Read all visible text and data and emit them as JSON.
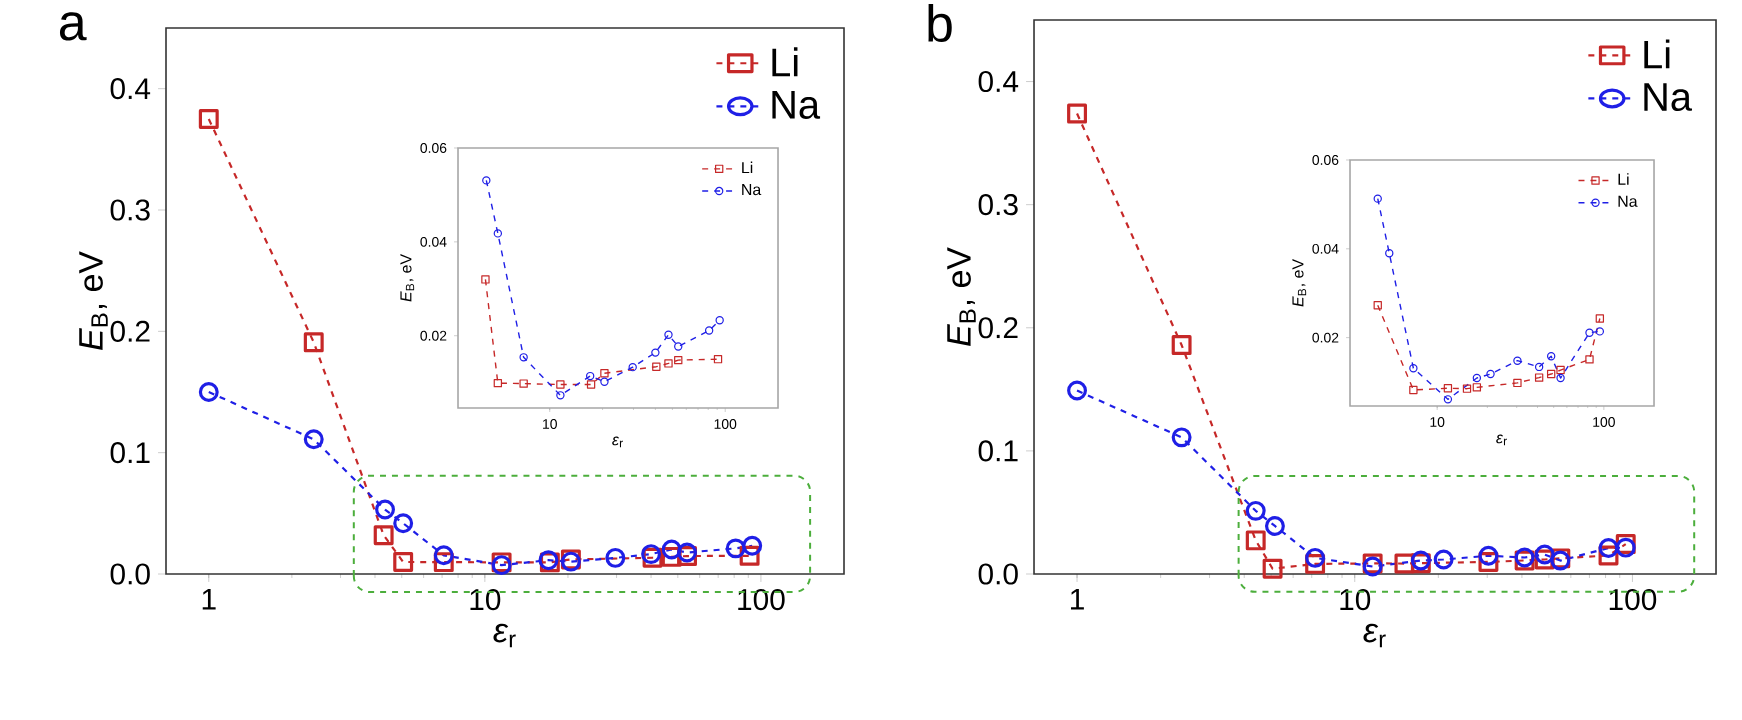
{
  "chart_data": [
    {
      "type": "line",
      "title": "a",
      "xlabel": "*ε*$_{r}$",
      "ylabel": "*E*$_{B}$, eV",
      "log": "x",
      "legend": "top right",
      "line_style": "dashed",
      "xlim": [
        0.7,
        200
      ],
      "ylim": [
        0,
        0.45
      ],
      "xticks": [
        1,
        10,
        100
      ],
      "yticks": [
        {
          "value": 0,
          "label": "0.0"
        },
        {
          "value": 0.1,
          "label": "0.1"
        },
        {
          "value": 0.2,
          "label": "0.2"
        },
        {
          "value": 0.3,
          "label": "0.3"
        },
        {
          "value": 0.4,
          "label": "0.4"
        }
      ],
      "series": [
        {
          "name": "Li",
          "color": "#c62828",
          "marker": "square",
          "x": [
            1,
            2.4,
            4.3,
            5.06,
            7.1,
            11.5,
            17.2,
            20.5,
            40.5,
            47.5,
            54,
            91
          ],
          "values": [
            0.375,
            0.191,
            0.032,
            0.0099,
            0.0098,
            0.0096,
            0.0096,
            0.012,
            0.0134,
            0.0141,
            0.0148,
            0.015
          ]
        },
        {
          "name": "Na",
          "color": "#1f1fe6",
          "marker": "circle",
          "x": [
            1,
            2.4,
            4.35,
            5.06,
            7.1,
            11.5,
            17,
            20.5,
            29.7,
            40,
            47.5,
            54,
            81,
            93
          ],
          "values": [
            0.15,
            0.111,
            0.0531,
            0.0418,
            0.0154,
            0.0073,
            0.0114,
            0.0102,
            0.0133,
            0.0164,
            0.0202,
            0.0177,
            0.0211,
            0.0233
          ]
        }
      ]
    },
    {
      "type": "line",
      "xlabel": "*ε*$_{r}$",
      "ylabel": "*E*$_{B}$, eV",
      "log": "x",
      "legend": "top right",
      "line_style": "dashed",
      "xlim": [
        3,
        200
      ],
      "ylim": [
        0.0046,
        0.06
      ],
      "xticks": [
        10,
        100
      ],
      "yticks": [
        0.02,
        0.04,
        0.06
      ],
      "series": [
        {
          "name": "Li",
          "color": "#c62828",
          "marker": "square",
          "x": [
            4.3,
            5.06,
            7.1,
            11.5,
            17.2,
            20.5,
            40.5,
            47.5,
            54,
            91
          ],
          "values": [
            0.032,
            0.0099,
            0.0098,
            0.0096,
            0.0096,
            0.012,
            0.0134,
            0.0141,
            0.0148,
            0.015
          ]
        },
        {
          "name": "Na",
          "color": "#1f1fe6",
          "marker": "circle",
          "x": [
            4.35,
            5.06,
            7.1,
            11.5,
            17,
            20.5,
            29.7,
            40,
            47.5,
            54,
            81,
            93
          ],
          "values": [
            0.0531,
            0.0418,
            0.0154,
            0.0073,
            0.0114,
            0.0102,
            0.0133,
            0.0164,
            0.0202,
            0.0177,
            0.0211,
            0.0233
          ]
        }
      ]
    },
    {
      "type": "line",
      "title": "b",
      "xlabel": "*ε*$_{r}$",
      "ylabel": "*E*$_{B}$, eV",
      "log": "x",
      "legend": "top right",
      "line_style": "dashed",
      "xlim": [
        0.7,
        200
      ],
      "ylim": [
        0,
        0.45
      ],
      "xticks": [
        1,
        10,
        100
      ],
      "yticks": [
        {
          "value": 0,
          "label": "0.0"
        },
        {
          "value": 0.1,
          "label": "0.1"
        },
        {
          "value": 0.2,
          "label": "0.2"
        },
        {
          "value": 0.3,
          "label": "0.3"
        },
        {
          "value": 0.4,
          "label": "0.4"
        }
      ],
      "series": [
        {
          "name": "Li",
          "color": "#c62828",
          "marker": "square",
          "x": [
            1,
            2.38,
            4.4,
            5.06,
            7.2,
            11.6,
            15.1,
            17.3,
            30.3,
            40.9,
            48.3,
            55,
            82,
            94.6
          ],
          "values": [
            0.374,
            0.186,
            0.0273,
            0.0043,
            0.0082,
            0.0086,
            0.0085,
            0.0088,
            0.0098,
            0.011,
            0.0118,
            0.0127,
            0.0151,
            0.0243
          ]
        },
        {
          "name": "Na",
          "color": "#1f1fe6",
          "marker": "circle",
          "x": [
            1,
            2.38,
            4.4,
            5.16,
            7.2,
            11.6,
            17.3,
            20.9,
            30.3,
            40.9,
            48.3,
            55,
            82,
            94.6
          ],
          "values": [
            0.149,
            0.111,
            0.0513,
            0.039,
            0.0131,
            0.0061,
            0.0109,
            0.0118,
            0.0148,
            0.0134,
            0.0158,
            0.0109,
            0.0211,
            0.0214
          ]
        }
      ]
    },
    {
      "type": "line",
      "xlabel": "*ε*$_{r}$",
      "ylabel": "*E*$_{B}$, eV",
      "log": "x",
      "legend": "top right",
      "line_style": "dashed",
      "xlim": [
        3,
        200
      ],
      "ylim": [
        0.0046,
        0.06
      ],
      "xticks": [
        10,
        100
      ],
      "yticks": [
        0.02,
        0.04,
        0.06
      ],
      "series": [
        {
          "name": "Li",
          "color": "#c62828",
          "marker": "square",
          "x": [
            4.4,
            5.06,
            7.2,
            11.6,
            15.1,
            17.3,
            30.3,
            40.9,
            48.3,
            55,
            82,
            94.6
          ],
          "values": [
            0.0273,
            null,
            0.0082,
            0.0086,
            0.0085,
            0.0088,
            0.0098,
            0.011,
            0.0118,
            0.0127,
            0.0151,
            0.0243
          ]
        },
        {
          "name": "Na",
          "color": "#1f1fe6",
          "marker": "circle",
          "x": [
            4.4,
            5.16,
            7.2,
            11.6,
            17.3,
            20.9,
            30.3,
            40.9,
            48.3,
            55,
            82,
            94.6
          ],
          "values": [
            0.0513,
            0.039,
            0.0131,
            0.0061,
            0.0109,
            0.0118,
            0.0148,
            0.0134,
            0.0158,
            0.0109,
            0.0211,
            0.0214
          ]
        }
      ]
    }
  ]
}
